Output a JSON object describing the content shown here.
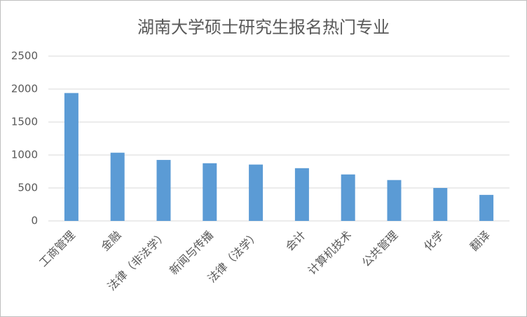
{
  "chart_data": {
    "type": "bar",
    "title": "湖南大学硕士研究生报名热门专业",
    "categories": [
      "工商管理",
      "金融",
      "法律（非法学）",
      "新闻与传播",
      "法律（法学）",
      "会计",
      "计算机技术",
      "公共管理",
      "化学",
      "翻译"
    ],
    "values": [
      1940,
      1035,
      925,
      875,
      855,
      800,
      705,
      620,
      500,
      395
    ],
    "color": "#5b9bd5",
    "ylim": [
      0,
      2500
    ],
    "yticks": [
      0,
      500,
      1000,
      1500,
      2000,
      2500
    ],
    "grid": true
  }
}
